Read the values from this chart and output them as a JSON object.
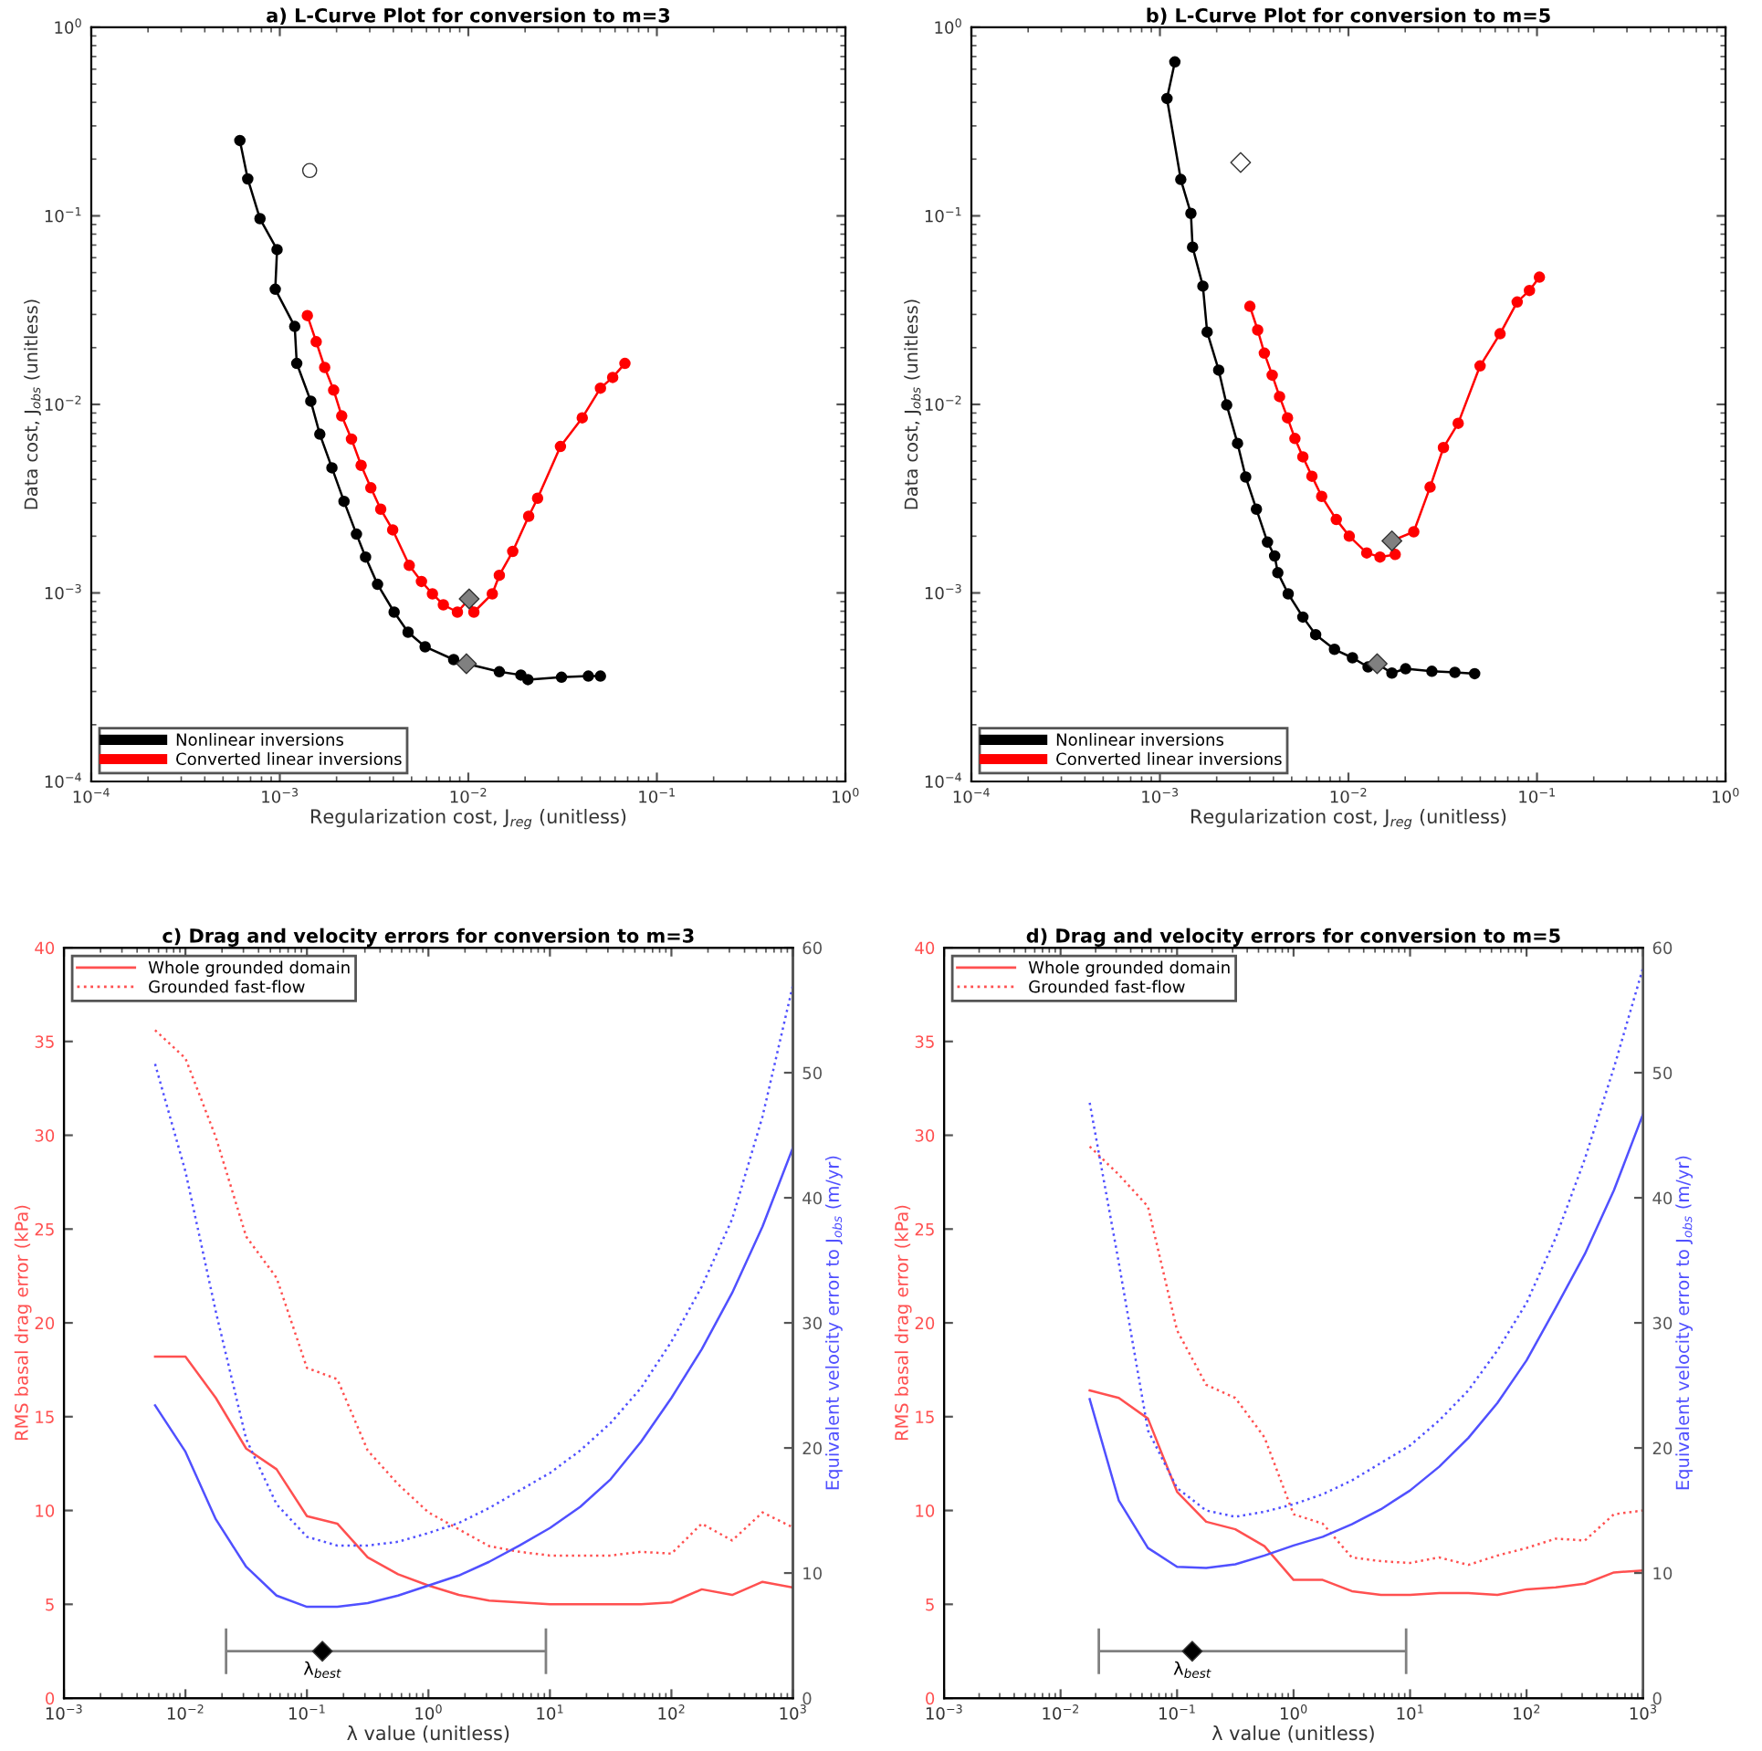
{
  "chart_data": [
    {
      "type": "line",
      "title": "a) L-Curve Plot for conversion to m=3",
      "xlabel": "Regularization cost, J$_{reg}$ (unitless)",
      "ylabel": "Data cost, J$_{obs}$ (unitless)",
      "log": "xy",
      "marker": "circle",
      "legend": "bottom left",
      "xlim": [
        0.0001,
        1
      ],
      "ylim": [
        0.0001,
        1
      ],
      "xticks": [
        {
          "value": 0.0001,
          "label": "10$^{−4}$"
        },
        {
          "value": 0.001,
          "label": "10$^{−3}$"
        },
        {
          "value": 0.01,
          "label": "10$^{−2}$"
        },
        {
          "value": 0.1,
          "label": "10$^{−1}$"
        },
        {
          "value": 1,
          "label": "10$^{0}$"
        }
      ],
      "yticks": [
        {
          "value": 0.0001,
          "label": "10$^{−4}$"
        },
        {
          "value": 0.001,
          "label": "10$^{−3}$"
        },
        {
          "value": 0.01,
          "label": "10$^{−2}$"
        },
        {
          "value": 0.1,
          "label": "10$^{−1}$"
        },
        {
          "value": 1,
          "label": "10$^{0}$"
        }
      ],
      "series": [
        {
          "name": "Nonlinear inversions",
          "color": "#000000",
          "x": [
            0.000614,
            0.000676,
            0.000785,
            0.000967,
            0.000946,
            0.0012,
            0.00123,
            0.00146,
            0.00163,
            0.00189,
            0.00219,
            0.00255,
            0.00285,
            0.0033,
            0.00404,
            0.00479,
            0.0059,
            0.00836,
            0.00977,
            0.0146,
            0.019,
            0.0207,
            0.0312,
            0.0433,
            0.0502
          ],
          "values": [
            0.251,
            0.157,
            0.0966,
            0.0662,
            0.0408,
            0.0259,
            0.0165,
            0.0104,
            0.00695,
            0.00461,
            0.00306,
            0.00205,
            0.00155,
            0.00111,
            0.000791,
            0.000619,
            0.000518,
            0.000443,
            0.000421,
            0.000382,
            0.000367,
            0.000347,
            0.000357,
            0.000362,
            0.000362
          ]
        },
        {
          "name": "Converted linear inversions",
          "color": "#ff0000",
          "x": [
            0.0014,
            0.00156,
            0.00173,
            0.00193,
            0.00213,
            0.0024,
            0.0027,
            0.00304,
            0.00343,
            0.00397,
            0.00486,
            0.00564,
            0.00645,
            0.00737,
            0.00875,
            0.0101,
            0.0107,
            0.0134,
            0.0146,
            0.0172,
            0.0209,
            0.0233,
            0.0308,
            0.0402,
            0.0502,
            0.0583,
            0.0677
          ],
          "values": [
            0.0296,
            0.0215,
            0.0157,
            0.0119,
            0.00869,
            0.00655,
            0.00475,
            0.00361,
            0.00278,
            0.00216,
            0.0014,
            0.00115,
            0.000989,
            0.000865,
            0.000791,
            0.000931,
            0.000791,
            0.000989,
            0.00124,
            0.00166,
            0.00255,
            0.00318,
            0.00598,
            0.00849,
            0.0122,
            0.0139,
            0.0165
          ]
        },
        {
          "type": "scatter",
          "color": "#808080",
          "marker": "diamond",
          "x": [
            0.00977,
            0.0101
          ],
          "values": [
            0.000421,
            0.000931
          ]
        },
        {
          "type": "scatter",
          "color": "#ffffff",
          "marker": "circle",
          "x": [
            0.00144
          ],
          "values": [
            0.174
          ]
        }
      ]
    },
    {
      "type": "line",
      "title": "b) L-Curve Plot for conversion to m=5",
      "xlabel": "Regularization cost, J$_{reg}$ (unitless)",
      "ylabel": "Data cost, J$_{obs}$ (unitless)",
      "log": "xy",
      "marker": "circle",
      "legend": "bottom left",
      "xlim": [
        0.0001,
        1
      ],
      "ylim": [
        0.0001,
        1
      ],
      "xticks": [
        {
          "value": 0.0001,
          "label": "10$^{−4}$"
        },
        {
          "value": 0.001,
          "label": "10$^{−3}$"
        },
        {
          "value": 0.01,
          "label": "10$^{−2}$"
        },
        {
          "value": 0.1,
          "label": "10$^{−1}$"
        },
        {
          "value": 1,
          "label": "10$^{0}$"
        }
      ],
      "yticks": [
        {
          "value": 0.0001,
          "label": "10$^{−4}$"
        },
        {
          "value": 0.001,
          "label": "10$^{−3}$"
        },
        {
          "value": 0.01,
          "label": "10$^{−2}$"
        },
        {
          "value": 0.1,
          "label": "10$^{−1}$"
        },
        {
          "value": 1,
          "label": "10$^{0}$"
        }
      ],
      "series": [
        {
          "name": "Nonlinear inversions",
          "color": "#000000",
          "x": [
            0.0012,
            0.00109,
            0.00129,
            0.00146,
            0.00149,
            0.00169,
            0.00178,
            0.00205,
            0.00226,
            0.00258,
            0.00285,
            0.00325,
            0.00372,
            0.00406,
            0.00422,
            0.00479,
            0.00573,
            0.0067,
            0.00843,
            0.0105,
            0.0127,
            0.0142,
            0.017,
            0.0201,
            0.0277,
            0.0367,
            0.0467
          ],
          "values": [
            0.655,
            0.419,
            0.156,
            0.103,
            0.0683,
            0.0424,
            0.0242,
            0.0152,
            0.00993,
            0.00621,
            0.00412,
            0.00278,
            0.00186,
            0.00157,
            0.00128,
            0.000989,
            0.000745,
            0.000601,
            0.000502,
            0.000453,
            0.000405,
            0.000421,
            0.000376,
            0.000396,
            0.000384,
            0.000379,
            0.000373
          ]
        },
        {
          "name": "Converted linear inversions",
          "color": "#ff0000",
          "x": [
            0.003,
            0.0033,
            0.00358,
            0.00394,
            0.00431,
            0.00475,
            0.0052,
            0.00573,
            0.0064,
            0.00721,
            0.00862,
            0.0101,
            0.0125,
            0.0147,
            0.0177,
            0.017,
            0.0222,
            0.0271,
            0.0319,
            0.0382,
            0.0499,
            0.0637,
            0.0785,
            0.0912,
            0.103
          ],
          "values": [
            0.0331,
            0.0248,
            0.0187,
            0.0143,
            0.011,
            0.00849,
            0.00659,
            0.00527,
            0.00416,
            0.00325,
            0.00245,
            0.002,
            0.00163,
            0.00155,
            0.0016,
            0.00189,
            0.00211,
            0.00364,
            0.0059,
            0.00794,
            0.016,
            0.0237,
            0.0349,
            0.0402,
            0.0473
          ]
        },
        {
          "type": "scatter",
          "color": "#808080",
          "marker": "diamond",
          "x": [
            0.0142,
            0.017
          ],
          "values": [
            0.000421,
            0.00189
          ]
        },
        {
          "type": "scatter",
          "color": "#ffffff",
          "marker": "diamond",
          "x": [
            0.00268
          ],
          "values": [
            0.192
          ]
        }
      ]
    },
    {
      "type": "line",
      "title": "c) Drag and velocity errors for conversion to m=3",
      "xlabel": "λ value (unitless)",
      "ylabel": "RMS basal drag error (kPa)",
      "y2label": "Equivalent velocity error to J$_{obs}$ (m/yr)",
      "log": "x",
      "legend": "top left",
      "xlim": [
        0.001,
        1000
      ],
      "ylim": [
        0,
        40
      ],
      "y2lim": [
        0,
        60
      ],
      "xticks": [
        {
          "value": 0.001,
          "label": "10$^{−3}$"
        },
        {
          "value": 0.01,
          "label": "10$^{−2}$"
        },
        {
          "value": 0.1,
          "label": "10$^{−1}$"
        },
        {
          "value": 1,
          "label": "10$^{0}$"
        },
        {
          "value": 10,
          "label": "10$^{1}$"
        },
        {
          "value": 100,
          "label": "10$^{2}$"
        },
        {
          "value": 1000,
          "label": "10$^{3}$"
        }
      ],
      "yticks": [
        0,
        5,
        10,
        15,
        20,
        25,
        30,
        35,
        40
      ],
      "y2ticks": [
        0,
        10,
        20,
        30,
        40,
        50,
        60
      ],
      "x": [
        0.005623,
        0.01,
        0.01778,
        0.03162,
        0.05623,
        0.1,
        0.1778,
        0.3162,
        0.5623,
        1,
        1.778,
        3.162,
        5.623,
        10,
        17.78,
        31.62,
        56.23,
        100,
        177.8,
        316.2,
        562.3,
        1000
      ],
      "series": [
        {
          "name": "Whole grounded domain",
          "color": "#ff5050",
          "line_style": "solid",
          "values": [
            18.2,
            18.2,
            16.0,
            13.3,
            12.2,
            9.7,
            9.3,
            7.5,
            6.6,
            6.0,
            5.5,
            5.2,
            5.1,
            5.0,
            5.0,
            5.0,
            5.0,
            5.1,
            5.8,
            5.5,
            6.2,
            5.9
          ]
        },
        {
          "name": "Grounded fast-flow",
          "color": "#ff5050",
          "line_style": "dotted",
          "values": [
            35.6,
            34.1,
            29.9,
            24.6,
            22.4,
            17.6,
            17.0,
            13.2,
            11.4,
            9.9,
            9.0,
            8.1,
            7.8,
            7.6,
            7.6,
            7.6,
            7.8,
            7.7,
            9.3,
            8.4,
            9.9,
            9.1
          ]
        },
        {
          "color": "#5050ff",
          "line_style": "solid",
          "axis": "y2",
          "values": [
            23.4,
            19.7,
            14.3,
            10.5,
            8.2,
            7.3,
            7.3,
            7.6,
            8.2,
            9.0,
            9.8,
            10.9,
            12.2,
            13.6,
            15.3,
            17.5,
            20.5,
            24.0,
            27.9,
            32.4,
            37.7,
            44.0
          ]
        },
        {
          "color": "#5050ff",
          "line_style": "dotted",
          "axis": "y2",
          "values": [
            50.7,
            42.1,
            30.9,
            20.7,
            15.5,
            12.9,
            12.2,
            12.2,
            12.5,
            13.2,
            14.0,
            15.2,
            16.6,
            18.0,
            19.8,
            22.0,
            24.8,
            28.5,
            32.9,
            38.3,
            46.5,
            57.0
          ]
        },
        {
          "type": "scatter",
          "color": "#000000",
          "marker": "diamond",
          "x": [
            0.134
          ],
          "values": [
            2.5
          ],
          "xerrors": [
            [
              0.0216,
              9.27
            ]
          ]
        }
      ],
      "annotations": [
        {
          "text": "λ$_{best}$",
          "x": 0.134,
          "y": 2.5
        }
      ]
    },
    {
      "type": "line",
      "title": "d) Drag and velocity errors for conversion to m=5",
      "xlabel": "λ value (unitless)",
      "ylabel": "RMS basal drag error (kPa)",
      "y2label": "Equivalent velocity error to J$_{obs}$ (m/yr)",
      "log": "x",
      "legend": "top left",
      "xlim": [
        0.001,
        1000
      ],
      "ylim": [
        0,
        40
      ],
      "y2lim": [
        0,
        60
      ],
      "xticks": [
        {
          "value": 0.001,
          "label": "10$^{−3}$"
        },
        {
          "value": 0.01,
          "label": "10$^{−2}$"
        },
        {
          "value": 0.1,
          "label": "10$^{−1}$"
        },
        {
          "value": 1,
          "label": "10$^{0}$"
        },
        {
          "value": 10,
          "label": "10$^{1}$"
        },
        {
          "value": 100,
          "label": "10$^{2}$"
        },
        {
          "value": 1000,
          "label": "10$^{3}$"
        }
      ],
      "yticks": [
        0,
        5,
        10,
        15,
        20,
        25,
        30,
        35,
        40
      ],
      "y2ticks": [
        0,
        10,
        20,
        30,
        40,
        50,
        60
      ],
      "x": [
        0.01778,
        0.03162,
        0.05623,
        0.1,
        0.1778,
        0.3162,
        0.5623,
        1,
        1.778,
        3.162,
        5.623,
        10,
        17.78,
        31.62,
        56.23,
        100,
        177.8,
        316.2,
        562.3,
        1000
      ],
      "series": [
        {
          "name": "Whole grounded domain",
          "color": "#ff5050",
          "line_style": "solid",
          "values": [
            16.4,
            16.0,
            14.9,
            11.0,
            9.4,
            9.0,
            8.1,
            6.3,
            6.3,
            5.7,
            5.5,
            5.5,
            5.6,
            5.6,
            5.5,
            5.8,
            5.9,
            6.1,
            6.7,
            6.8
          ]
        },
        {
          "name": "Grounded fast-flow",
          "color": "#ff5050",
          "line_style": "dotted",
          "values": [
            29.4,
            27.9,
            26.2,
            19.6,
            16.7,
            16.0,
            13.9,
            9.8,
            9.3,
            7.5,
            7.3,
            7.2,
            7.5,
            7.1,
            7.6,
            8.0,
            8.5,
            8.4,
            9.8,
            10.0
          ]
        },
        {
          "color": "#5050ff",
          "line_style": "solid",
          "axis": "y2",
          "values": [
            23.9,
            15.8,
            12.0,
            10.5,
            10.4,
            10.7,
            11.4,
            12.2,
            12.9,
            13.9,
            15.1,
            16.6,
            18.5,
            20.8,
            23.6,
            27.0,
            31.2,
            35.5,
            40.6,
            46.7
          ]
        },
        {
          "color": "#5050ff",
          "line_style": "dotted",
          "axis": "y2",
          "values": [
            47.6,
            34.8,
            21.4,
            16.8,
            15.0,
            14.5,
            14.9,
            15.5,
            16.3,
            17.4,
            18.8,
            20.2,
            22.2,
            24.6,
            27.8,
            31.6,
            36.8,
            43.1,
            50.4,
            58.4
          ]
        },
        {
          "type": "scatter",
          "color": "#000000",
          "marker": "diamond",
          "x": [
            0.135
          ],
          "values": [
            2.5
          ],
          "xerrors": [
            [
              0.0213,
              9.25
            ]
          ]
        }
      ],
      "annotations": [
        {
          "text": "λ$_{best}$",
          "x": 0.135,
          "y": 2.5
        }
      ]
    }
  ]
}
